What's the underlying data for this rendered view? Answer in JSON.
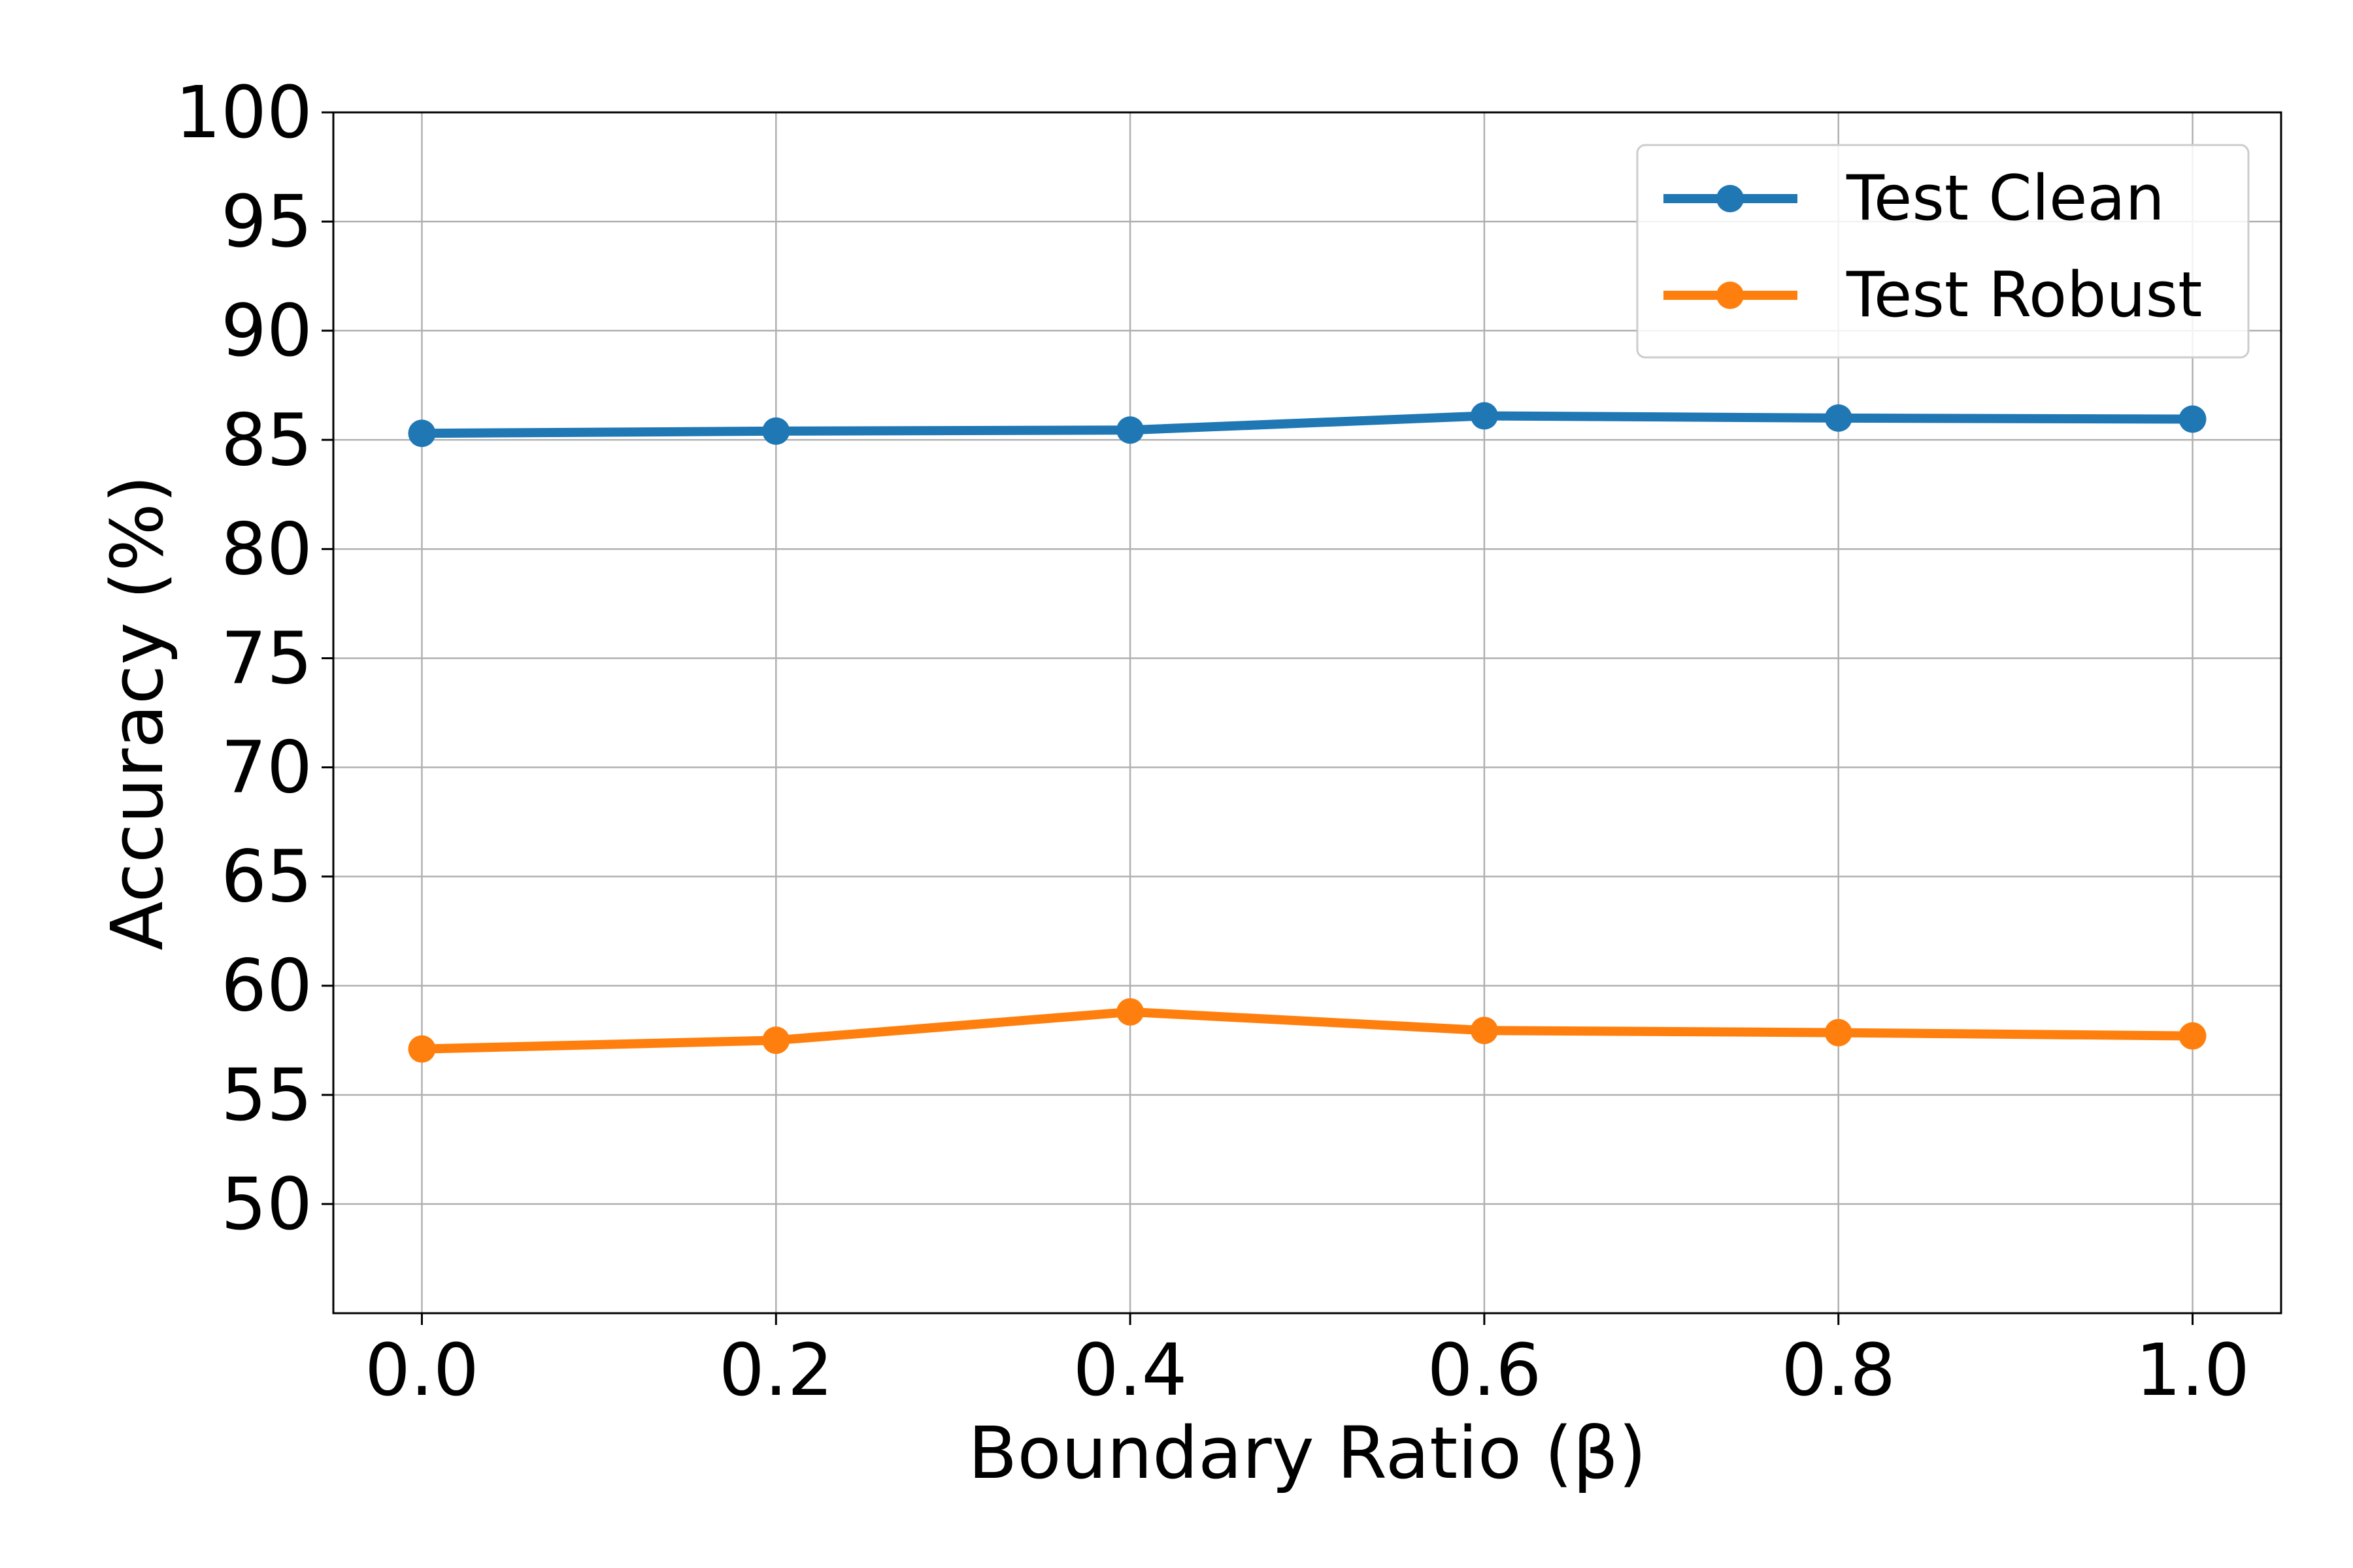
{
  "chart_data": {
    "type": "line",
    "title": "",
    "xlabel": "Boundary Ratio (β)",
    "ylabel": "Accuracy (%)",
    "x": [
      0.0,
      0.2,
      0.4,
      0.6,
      0.8,
      1.0
    ],
    "x_tick_labels": [
      "0.0",
      "0.2",
      "0.4",
      "0.6",
      "0.8",
      "1.0"
    ],
    "y_ticks": [
      50,
      55,
      60,
      65,
      70,
      75,
      80,
      85,
      90,
      95,
      100
    ],
    "y_tick_labels": [
      "50",
      "55",
      "60",
      "65",
      "70",
      "75",
      "80",
      "85",
      "90",
      "95",
      "100"
    ],
    "xlim": [
      -0.05,
      1.05
    ],
    "ylim": [
      45,
      100
    ],
    "grid": true,
    "legend_position": "top-right",
    "series": [
      {
        "name": "Test Clean",
        "color": "#1f77b4",
        "values": [
          85.3,
          85.4,
          85.45,
          86.1,
          86.0,
          85.95
        ]
      },
      {
        "name": "Test Robust",
        "color": "#ff7f0e",
        "values": [
          57.1,
          57.5,
          58.8,
          57.95,
          57.85,
          57.7
        ]
      }
    ]
  }
}
